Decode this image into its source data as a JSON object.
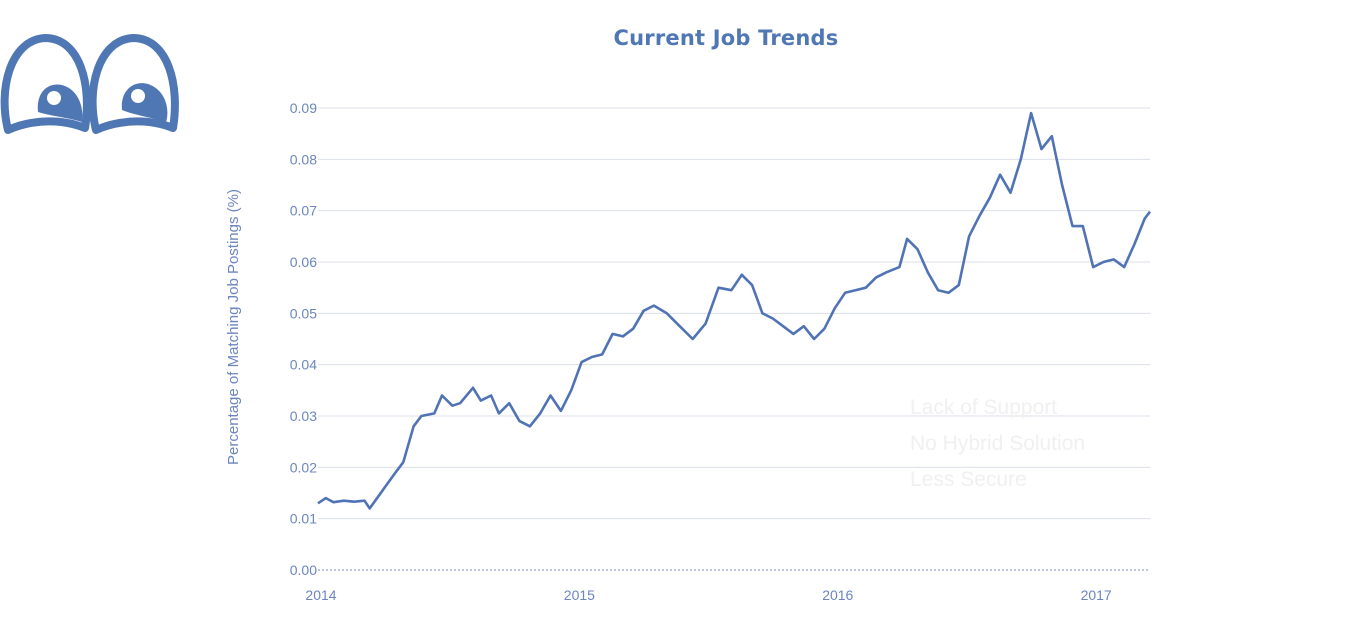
{
  "title": "Current Job Trends",
  "icons": {
    "logo": "cartoon-eyes-icon"
  },
  "colors": {
    "line": "#4f73b5",
    "title": "#4f77b3",
    "ticks": "#6b86bf",
    "grid": "#dcdfe8"
  },
  "annotations": [
    "Lack of Support",
    "No Hybrid Solution",
    "Less Secure"
  ],
  "chart_data": {
    "type": "line",
    "title": "Current Job Trends",
    "xlabel": "",
    "ylabel": "Percentage of Matching Job Postings (%)",
    "ylim": [
      0,
      0.09
    ],
    "xlim": [
      2014.0,
      2017.22
    ],
    "yticks": [
      "0.00",
      "0.01",
      "0.02",
      "0.03",
      "0.04",
      "0.05",
      "0.06",
      "0.07",
      "0.08",
      "0.09"
    ],
    "xticks": [
      "2014",
      "2015",
      "2016",
      "2017"
    ],
    "grid": true,
    "legend": "none",
    "series": [
      {
        "x": [
          2014.0,
          2014.03,
          2014.06,
          2014.1,
          2014.14,
          2014.18,
          2014.2,
          2014.25,
          2014.3,
          2014.33,
          2014.37,
          2014.4,
          2014.45,
          2014.48,
          2014.52,
          2014.55,
          2014.6,
          2014.63,
          2014.67,
          2014.7,
          2014.74,
          2014.78,
          2014.82,
          2014.86,
          2014.9,
          2014.94,
          2014.98,
          2015.02,
          2015.06,
          2015.1,
          2015.14,
          2015.18,
          2015.22,
          2015.26,
          2015.3,
          2015.35,
          2015.4,
          2015.45,
          2015.5,
          2015.55,
          2015.6,
          2015.64,
          2015.68,
          2015.72,
          2015.76,
          2015.8,
          2015.84,
          2015.88,
          2015.92,
          2015.96,
          2016.0,
          2016.04,
          2016.08,
          2016.12,
          2016.16,
          2016.2,
          2016.25,
          2016.28,
          2016.32,
          2016.36,
          2016.4,
          2016.44,
          2016.48,
          2016.52,
          2016.56,
          2016.6,
          2016.64,
          2016.68,
          2016.72,
          2016.76,
          2016.8,
          2016.84,
          2016.88,
          2016.92,
          2016.96,
          2017.0,
          2017.04,
          2017.08,
          2017.12,
          2017.16,
          2017.2,
          2017.22
        ],
        "y": [
          0.013,
          0.014,
          0.0132,
          0.0135,
          0.0133,
          0.0135,
          0.012,
          0.0155,
          0.019,
          0.021,
          0.028,
          0.03,
          0.0305,
          0.034,
          0.032,
          0.0325,
          0.0355,
          0.033,
          0.034,
          0.0305,
          0.0325,
          0.029,
          0.028,
          0.0305,
          0.034,
          0.031,
          0.035,
          0.0405,
          0.0415,
          0.042,
          0.046,
          0.0455,
          0.047,
          0.0505,
          0.0515,
          0.05,
          0.0475,
          0.045,
          0.048,
          0.055,
          0.0545,
          0.0575,
          0.0555,
          0.05,
          0.049,
          0.0475,
          0.046,
          0.0475,
          0.045,
          0.047,
          0.051,
          0.054,
          0.0545,
          0.055,
          0.057,
          0.058,
          0.059,
          0.0645,
          0.0625,
          0.058,
          0.0545,
          0.054,
          0.0555,
          0.065,
          0.069,
          0.0725,
          0.077,
          0.0735,
          0.08,
          0.089,
          0.082,
          0.0845,
          0.075,
          0.067,
          0.067,
          0.059,
          0.06,
          0.0605,
          0.059,
          0.0635,
          0.0685,
          0.0698
        ]
      }
    ]
  }
}
